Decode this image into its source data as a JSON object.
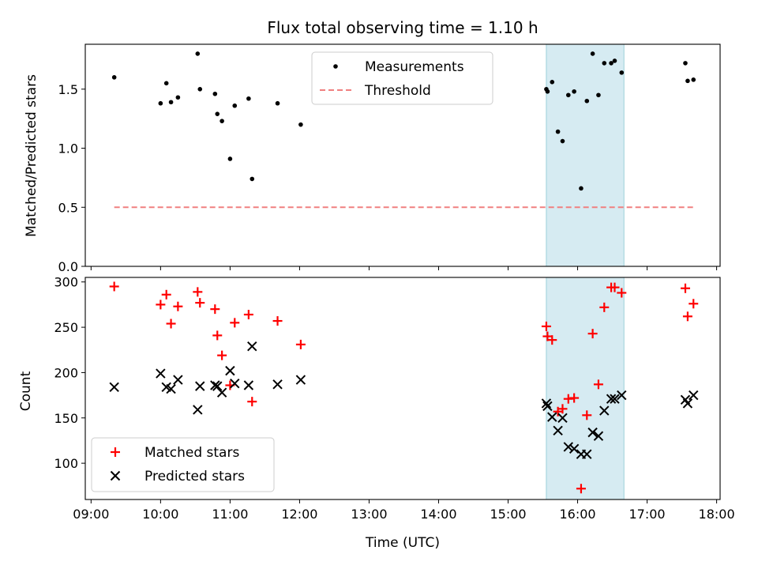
{
  "chart_data": [
    {
      "type": "scatter",
      "title": "Flux total observing time = 1.10 h",
      "xlabel": "",
      "ylabel": "Matched/Predicted stars",
      "xlim": [
        "08:55",
        "18:03"
      ],
      "ylim": [
        0,
        1.88
      ],
      "yticks": [
        "0.0",
        "0.5",
        "1.0",
        "1.5"
      ],
      "shaded_region": {
        "from": "15:33",
        "to": "16:40"
      },
      "legend_position": "upper center",
      "series": [
        {
          "name": "Measurements",
          "marker": "dot",
          "color": "#000000",
          "points": [
            [
              "09:20",
              1.6
            ],
            [
              "10:00",
              1.38
            ],
            [
              "10:05",
              1.55
            ],
            [
              "10:09",
              1.39
            ],
            [
              "10:15",
              1.43
            ],
            [
              "10:32",
              1.8
            ],
            [
              "10:34",
              1.5
            ],
            [
              "10:47",
              1.46
            ],
            [
              "10:49",
              1.29
            ],
            [
              "10:53",
              1.23
            ],
            [
              "11:00",
              0.91
            ],
            [
              "11:04",
              1.36
            ],
            [
              "11:16",
              1.42
            ],
            [
              "11:19",
              0.74
            ],
            [
              "11:41",
              1.38
            ],
            [
              "12:01",
              1.2
            ],
            [
              "15:33",
              1.5
            ],
            [
              "15:34",
              1.48
            ],
            [
              "15:38",
              1.56
            ],
            [
              "15:43",
              1.14
            ],
            [
              "15:47",
              1.06
            ],
            [
              "15:52",
              1.45
            ],
            [
              "15:57",
              1.48
            ],
            [
              "16:03",
              0.66
            ],
            [
              "16:08",
              1.4
            ],
            [
              "16:13",
              1.8
            ],
            [
              "16:18",
              1.45
            ],
            [
              "16:23",
              1.72
            ],
            [
              "16:29",
              1.72
            ],
            [
              "16:32",
              1.74
            ],
            [
              "16:38",
              1.64
            ],
            [
              "17:33",
              1.72
            ],
            [
              "17:35",
              1.57
            ],
            [
              "17:40",
              1.58
            ]
          ]
        },
        {
          "name": "Threshold",
          "marker": "dashed-line",
          "color": "#f08080",
          "points": [
            [
              "09:20",
              0.5
            ],
            [
              "17:40",
              0.5
            ]
          ]
        }
      ]
    },
    {
      "type": "scatter",
      "title": "",
      "xlabel": "Time (UTC)",
      "ylabel": "Count",
      "xlim": [
        "08:55",
        "18:03"
      ],
      "ylim": [
        60,
        305
      ],
      "yticks": [
        "100",
        "150",
        "200",
        "250",
        "300"
      ],
      "xticks": [
        "09:00",
        "10:00",
        "11:00",
        "12:00",
        "13:00",
        "14:00",
        "15:00",
        "16:00",
        "17:00",
        "18:00"
      ],
      "shaded_region": {
        "from": "15:33",
        "to": "16:40"
      },
      "legend_position": "lower left",
      "series": [
        {
          "name": "Matched stars",
          "marker": "plus",
          "color": "#ff0000",
          "points": [
            [
              "09:20",
              295
            ],
            [
              "10:00",
              275
            ],
            [
              "10:05",
              286
            ],
            [
              "10:09",
              254
            ],
            [
              "10:15",
              273
            ],
            [
              "10:32",
              289
            ],
            [
              "10:34",
              277
            ],
            [
              "10:47",
              270
            ],
            [
              "10:49",
              241
            ],
            [
              "10:53",
              219
            ],
            [
              "11:00",
              186
            ],
            [
              "11:04",
              255
            ],
            [
              "11:16",
              264
            ],
            [
              "11:19",
              168
            ],
            [
              "11:41",
              257
            ],
            [
              "12:01",
              231
            ],
            [
              "15:33",
              251
            ],
            [
              "15:34",
              240
            ],
            [
              "15:38",
              236
            ],
            [
              "15:43",
              157
            ],
            [
              "15:47",
              160
            ],
            [
              "15:52",
              171
            ],
            [
              "15:57",
              172
            ],
            [
              "16:03",
              72
            ],
            [
              "16:08",
              153
            ],
            [
              "16:13",
              243
            ],
            [
              "16:18",
              187
            ],
            [
              "16:23",
              272
            ],
            [
              "16:29",
              294
            ],
            [
              "16:32",
              294
            ],
            [
              "16:38",
              288
            ],
            [
              "17:33",
              293
            ],
            [
              "17:35",
              262
            ],
            [
              "17:40",
              276
            ]
          ]
        },
        {
          "name": "Predicted stars",
          "marker": "x",
          "color": "#000000",
          "points": [
            [
              "09:20",
              184
            ],
            [
              "10:00",
              199
            ],
            [
              "10:05",
              184
            ],
            [
              "10:09",
              182
            ],
            [
              "10:15",
              192
            ],
            [
              "10:32",
              159
            ],
            [
              "10:34",
              185
            ],
            [
              "10:47",
              186
            ],
            [
              "10:49",
              185
            ],
            [
              "10:53",
              178
            ],
            [
              "11:00",
              202
            ],
            [
              "11:04",
              188
            ],
            [
              "11:16",
              186
            ],
            [
              "11:19",
              229
            ],
            [
              "11:41",
              187
            ],
            [
              "12:01",
              192
            ],
            [
              "15:33",
              166
            ],
            [
              "15:34",
              163
            ],
            [
              "15:38",
              151
            ],
            [
              "15:43",
              136
            ],
            [
              "15:47",
              150
            ],
            [
              "15:52",
              118
            ],
            [
              "15:57",
              116
            ],
            [
              "16:03",
              110
            ],
            [
              "16:08",
              110
            ],
            [
              "16:13",
              134
            ],
            [
              "16:18",
              130
            ],
            [
              "16:23",
              158
            ],
            [
              "16:29",
              171
            ],
            [
              "16:32",
              171
            ],
            [
              "16:38",
              175
            ],
            [
              "17:33",
              170
            ],
            [
              "17:35",
              166
            ],
            [
              "17:40",
              175
            ]
          ]
        }
      ]
    }
  ]
}
